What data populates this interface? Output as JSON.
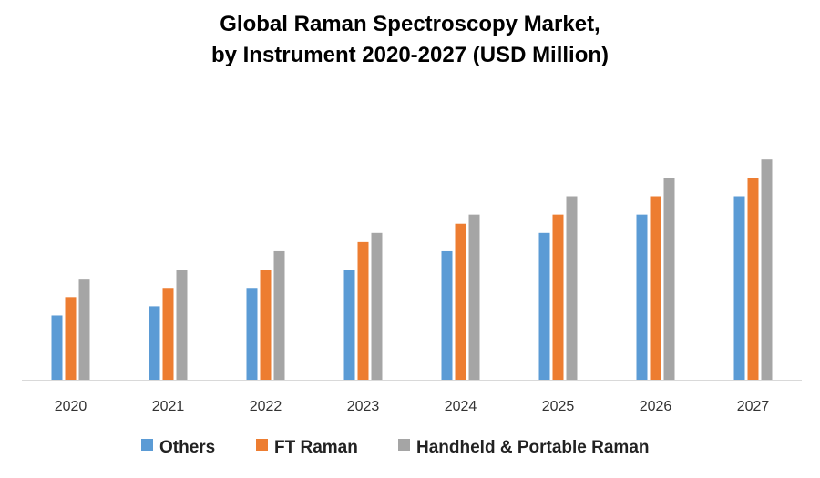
{
  "chart_data": {
    "type": "bar",
    "title_line1": "Global Raman Spectroscopy Market,",
    "title_line2": "by Instrument 2020-2027 (USD Million)",
    "xlabel": "",
    "ylabel": "",
    "y_axis_shown": false,
    "grid": false,
    "legend_position": "bottom",
    "ylim": [
      0,
      12.5
    ],
    "categories": [
      "2020",
      "2021",
      "2022",
      "2023",
      "2024",
      "2025",
      "2026",
      "2027"
    ],
    "series": [
      {
        "name": "Others",
        "color": "#5B9BD5",
        "values": [
          3.5,
          4,
          5,
          6,
          7,
          8,
          9,
          10
        ]
      },
      {
        "name": "FT Raman",
        "color": "#ED7D31",
        "values": [
          4.5,
          5,
          6,
          7.5,
          8.5,
          9,
          10,
          11
        ]
      },
      {
        "name": "Handheld & Portable Raman",
        "color": "#A5A5A5",
        "values": [
          5.5,
          6,
          7,
          8,
          9,
          10,
          11,
          12
        ]
      }
    ]
  }
}
